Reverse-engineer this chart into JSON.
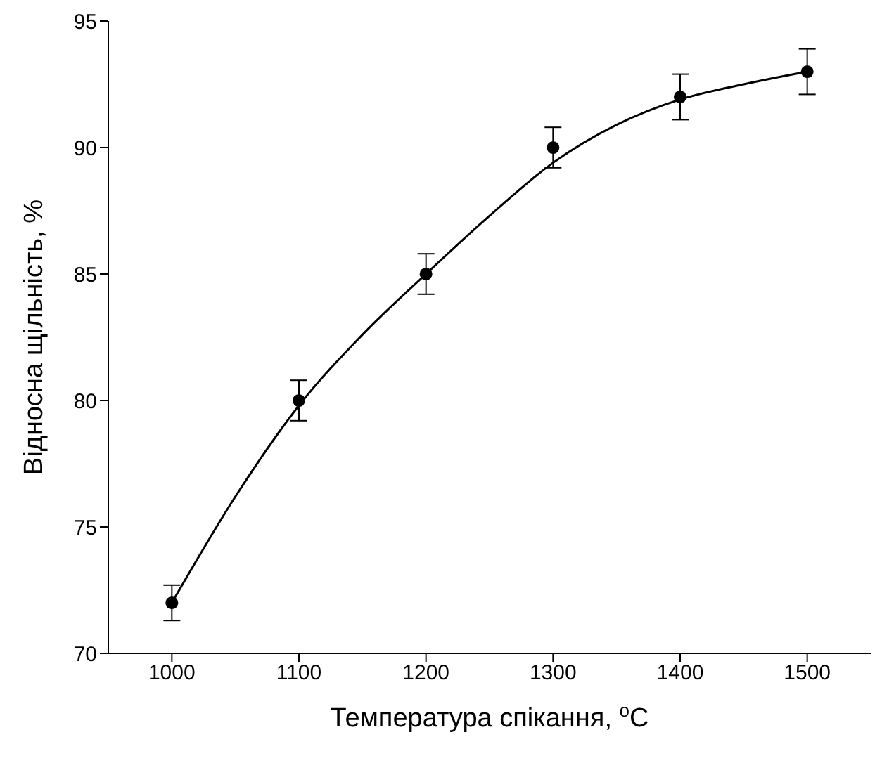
{
  "chart_data": {
    "type": "scatter",
    "xlabel": "Температура спікання, $^{o}$C",
    "ylabel": "Відносна щільність, %",
    "x": [
      1000,
      1100,
      1200,
      1300,
      1400,
      1500
    ],
    "xlim": [
      950,
      1550
    ],
    "xticks": [
      1000,
      1100,
      1200,
      1300,
      1400,
      1500
    ],
    "ylim": [
      70,
      95
    ],
    "yticks": [
      70,
      75,
      80,
      85,
      90,
      95
    ],
    "grid": false,
    "legend": false,
    "series": [
      {
        "marker": "circle",
        "color": "#000000",
        "values": [
          72,
          80,
          85,
          90,
          92,
          93
        ],
        "errors": [
          0.7,
          0.8,
          0.8,
          0.8,
          0.9,
          0.9
        ]
      },
      {
        "type": "line",
        "marker": "none",
        "color": "#000000",
        "line_style": "solid",
        "x": [
          1000,
          1050,
          1100,
          1150,
          1200,
          1250,
          1300,
          1350,
          1400,
          1450,
          1500
        ],
        "values": [
          72,
          76.2,
          79.8,
          82.6,
          85,
          87.3,
          89.4,
          90.9,
          91.9,
          92.5,
          93
        ]
      }
    ]
  }
}
